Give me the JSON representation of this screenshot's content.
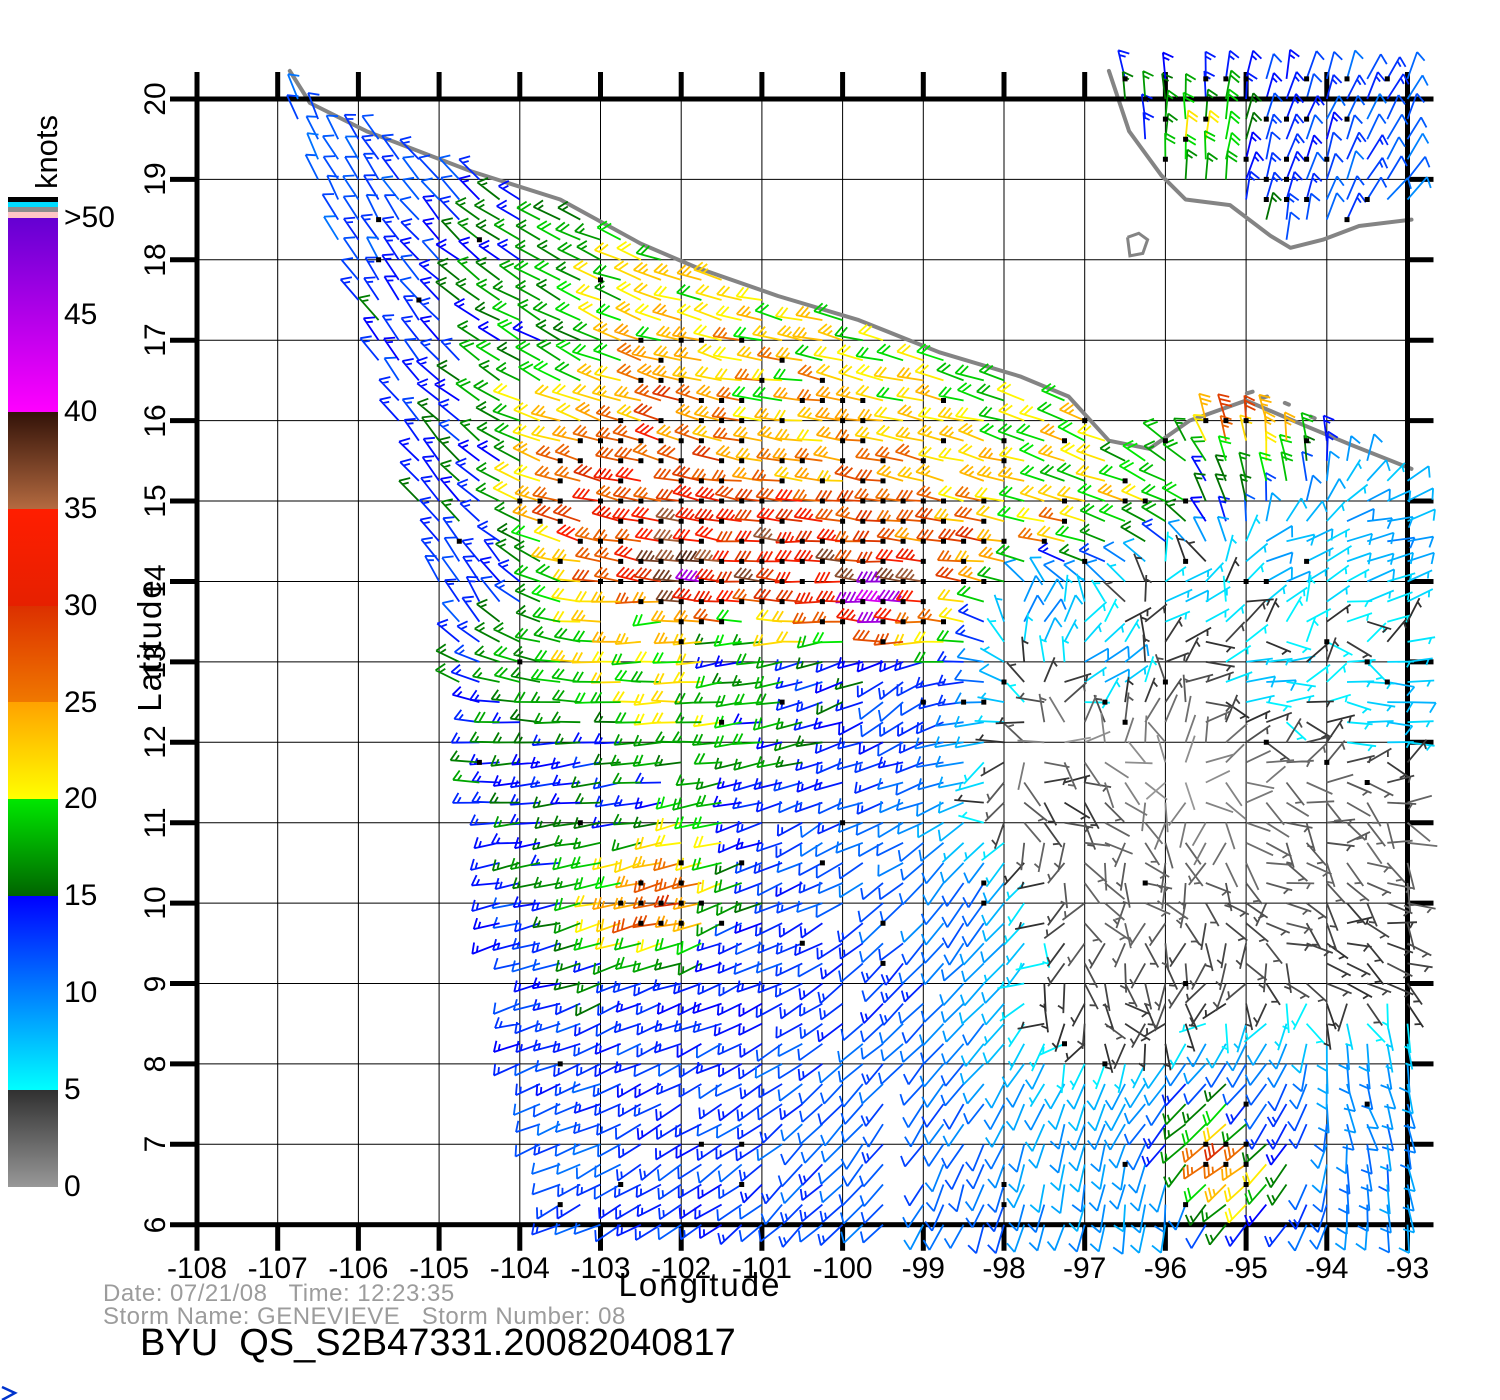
{
  "colorbar": {
    "title": "knots",
    "labels": [
      ">50",
      "45",
      "40",
      "35",
      "30",
      "25",
      "20",
      "15",
      "10",
      "5",
      "0"
    ],
    "top_stripes": [
      {
        "color": "#000000",
        "h": 5
      },
      {
        "color": "#00dcff",
        "h": 5
      },
      {
        "color": "#8c8c8c",
        "h": 5
      },
      {
        "color": "#ffc6c6",
        "h": 6
      }
    ],
    "gradient_segments": [
      {
        "top": "#6400d2",
        "bottom": "#ff00ff",
        "steps": 2
      },
      {
        "top": "#321208",
        "bottom": "#b46a40",
        "steps": 1
      },
      {
        "top": "#ff1e00",
        "bottom": "#e62000",
        "steps": 1
      },
      {
        "top": "#dc3000",
        "bottom": "#f07800",
        "steps": 1
      },
      {
        "top": "#ffa200",
        "bottom": "#ffff00",
        "steps": 1
      },
      {
        "top": "#00e800",
        "bottom": "#006400",
        "steps": 1
      },
      {
        "top": "#0000ff",
        "bottom": "#0080ff",
        "steps": 1
      },
      {
        "top": "#0080ff",
        "bottom": "#00ffff",
        "steps": 1
      },
      {
        "top": "#303030",
        "bottom": "#989898",
        "steps": 1
      }
    ]
  },
  "axes": {
    "xlabel": "Longitude",
    "ylabel": "Latitude",
    "x_tick_labels": [
      "-108",
      "-107",
      "-106",
      "-105",
      "-104",
      "-103",
      "-102",
      "-101",
      "-100",
      "-99",
      "-98",
      "-97",
      "-96",
      "-95",
      "-94",
      "-93"
    ],
    "y_tick_labels": [
      "20",
      "19",
      "18",
      "17",
      "16",
      "15",
      "14",
      "13",
      "12",
      "11",
      "10",
      "9",
      "8",
      "7",
      "6"
    ]
  },
  "footer": {
    "line1": "Date: 07/21/08   Time: 12:23:35",
    "line2": "Storm Name: GENEVIEVE   Storm Number: 08",
    "title": "BYU  QS_S2B47331.20082040817"
  },
  "chart_data": {
    "type": "wind-barb-map",
    "title": "BYU QS_S2B47331.20082040817",
    "date": "07/21/08",
    "time": "12:23:35",
    "storm_name": "GENEVIEVE",
    "storm_number": "08",
    "units": "knots",
    "lon_range": [
      -108,
      -93
    ],
    "lat_range": [
      6,
      20
    ],
    "grid_spacing_deg": 0.25,
    "legend_position": "left",
    "grid": true,
    "coast_color": "#848484",
    "corner_glyph_color": "#0033cc",
    "speed_color_stops": [
      [
        0,
        "#989898"
      ],
      [
        5,
        "#303030"
      ],
      [
        5.001,
        "#00ffff"
      ],
      [
        10,
        "#0080ff"
      ],
      [
        15,
        "#0000ff"
      ],
      [
        15.001,
        "#006400"
      ],
      [
        20,
        "#00e800"
      ],
      [
        20.001,
        "#ffff00"
      ],
      [
        25,
        "#ffa200"
      ],
      [
        25.001,
        "#f07800"
      ],
      [
        30,
        "#dc3000"
      ],
      [
        30.001,
        "#ff1e00"
      ],
      [
        35,
        "#e62000"
      ],
      [
        35.001,
        "#b46a40"
      ],
      [
        40,
        "#321208"
      ],
      [
        40.001,
        "#ff00ff"
      ],
      [
        50,
        "#6000c8"
      ],
      [
        99,
        "#6000c8"
      ]
    ],
    "swath_left_edge": [
      [
        6,
        -103.55
      ],
      [
        8,
        -104.0
      ],
      [
        10,
        -104.35
      ],
      [
        12,
        -104.6
      ],
      [
        14,
        -105.0
      ],
      [
        16,
        -105.5
      ],
      [
        18,
        -106.2
      ],
      [
        20.3,
        -106.97
      ]
    ],
    "coastlines": {
      "pacific": [
        [
          -106.85,
          20.35
        ],
        [
          -106.6,
          19.95
        ],
        [
          -105.9,
          19.6
        ],
        [
          -104.6,
          19.1
        ],
        [
          -103.5,
          18.75
        ],
        [
          -102.5,
          18.2
        ],
        [
          -101.8,
          17.9
        ],
        [
          -100.8,
          17.55
        ],
        [
          -99.8,
          17.25
        ],
        [
          -98.8,
          16.85
        ],
        [
          -97.8,
          16.55
        ],
        [
          -97.2,
          16.3
        ],
        [
          -96.7,
          15.75
        ],
        [
          -96.2,
          15.65
        ],
        [
          -95.7,
          16.0
        ],
        [
          -95.0,
          16.25
        ],
        [
          -94.3,
          15.95
        ],
        [
          -93.7,
          15.7
        ],
        [
          -92.95,
          15.4
        ]
      ],
      "campeche": [
        [
          -96.7,
          20.35
        ],
        [
          -96.55,
          19.9
        ],
        [
          -96.45,
          19.6
        ],
        [
          -96.05,
          19.05
        ],
        [
          -95.75,
          18.75
        ],
        [
          -95.2,
          18.68
        ],
        [
          -94.7,
          18.3
        ],
        [
          -94.45,
          18.15
        ],
        [
          -94.05,
          18.25
        ],
        [
          -93.6,
          18.42
        ],
        [
          -92.95,
          18.5
        ]
      ],
      "island": [
        [
          -96.47,
          18.28
        ],
        [
          -96.33,
          18.33
        ],
        [
          -96.22,
          18.25
        ],
        [
          -96.28,
          18.08
        ],
        [
          -96.44,
          18.05
        ],
        [
          -96.47,
          18.28
        ]
      ],
      "specks": [
        [
          -94.99,
          16.34,
          -94.92,
          16.36
        ],
        [
          -94.81,
          16.28,
          -94.74,
          16.3
        ],
        [
          -94.52,
          16.22,
          -94.47,
          16.2
        ],
        [
          -94.2,
          16.05,
          -94.15,
          16.03
        ]
      ]
    },
    "wind_control_points": [
      [
        -106.9,
        20.1,
        340,
        11
      ],
      [
        -106.6,
        19.8,
        335,
        11
      ],
      [
        -106.0,
        18.5,
        330,
        12
      ],
      [
        -105.5,
        17.0,
        325,
        14
      ],
      [
        -105.0,
        15.5,
        320,
        14
      ],
      [
        -104.6,
        14.0,
        330,
        13
      ],
      [
        -103.6,
        16.9,
        300,
        17
      ],
      [
        -102.8,
        16.2,
        290,
        24
      ],
      [
        -102.0,
        15.7,
        285,
        28
      ],
      [
        -102.9,
        15.0,
        285,
        30
      ],
      [
        -101.9,
        14.6,
        280,
        33
      ],
      [
        -101.9,
        14.05,
        280,
        40
      ],
      [
        -101.0,
        14.3,
        275,
        34
      ],
      [
        -100.2,
        14.2,
        272,
        34
      ],
      [
        -99.5,
        13.75,
        275,
        41
      ],
      [
        -99.0,
        14.0,
        272,
        32
      ],
      [
        -98.2,
        14.4,
        278,
        27
      ],
      [
        -97.4,
        14.7,
        283,
        24
      ],
      [
        -96.5,
        15.0,
        288,
        22
      ],
      [
        -95.8,
        15.2,
        292,
        20
      ],
      [
        -100.8,
        15.8,
        278,
        22
      ],
      [
        -99.5,
        15.3,
        280,
        25
      ],
      [
        -98.3,
        15.6,
        285,
        22
      ],
      [
        -97.3,
        15.9,
        290,
        22
      ],
      [
        -102.3,
        13.4,
        265,
        20
      ],
      [
        -101.3,
        13.0,
        260,
        16
      ],
      [
        -100.2,
        12.8,
        245,
        13
      ],
      [
        -99.3,
        12.6,
        225,
        12
      ],
      [
        -97.6,
        13.6,
        40,
        11
      ],
      [
        -96.8,
        13.0,
        60,
        9
      ],
      [
        -95.8,
        13.8,
        70,
        8
      ],
      [
        -94.6,
        14.3,
        78,
        9
      ],
      [
        -93.4,
        14.6,
        80,
        10
      ],
      [
        -94.8,
        12.8,
        85,
        7
      ],
      [
        -93.3,
        12.5,
        95,
        8
      ],
      [
        -97.3,
        11.3,
        120,
        5
      ],
      [
        -96.3,
        10.3,
        140,
        3
      ],
      [
        -95.2,
        9.6,
        160,
        4
      ],
      [
        -94.2,
        10.8,
        110,
        3
      ],
      [
        -96.6,
        8.8,
        150,
        4
      ],
      [
        -93.8,
        9.5,
        120,
        5
      ],
      [
        -104.0,
        9.5,
        255,
        13
      ],
      [
        -103.0,
        11.5,
        262,
        14
      ],
      [
        -102.1,
        10.0,
        255,
        29
      ],
      [
        -102.5,
        8.5,
        245,
        13
      ],
      [
        -101.3,
        9.5,
        245,
        13
      ],
      [
        -100.3,
        10.8,
        240,
        12
      ],
      [
        -99.5,
        9.0,
        225,
        13
      ],
      [
        -98.6,
        10.0,
        215,
        11
      ],
      [
        -103.3,
        6.8,
        245,
        12
      ],
      [
        -101.8,
        6.5,
        235,
        13
      ],
      [
        -100.4,
        6.4,
        225,
        12
      ],
      [
        -99.2,
        7.2,
        215,
        12
      ],
      [
        -98.3,
        6.4,
        200,
        11
      ],
      [
        -97.2,
        6.8,
        190,
        9
      ],
      [
        -96.2,
        6.3,
        185,
        9
      ],
      [
        -95.2,
        6.9,
        235,
        28
      ],
      [
        -94.6,
        7.3,
        210,
        12
      ],
      [
        -93.6,
        7.5,
        160,
        10
      ],
      [
        -93.2,
        6.5,
        170,
        10
      ],
      [
        -96.35,
        19.1,
        350,
        15
      ],
      [
        -95.6,
        19.25,
        5,
        21
      ],
      [
        -94.9,
        19.0,
        15,
        14
      ],
      [
        -94.2,
        19.4,
        20,
        13
      ],
      [
        -93.4,
        19.6,
        28,
        12
      ],
      [
        -93.1,
        18.8,
        40,
        11
      ],
      [
        -95.9,
        18.3,
        355,
        12
      ],
      [
        -95.15,
        16.05,
        350,
        30
      ],
      [
        -94.95,
        15.6,
        355,
        24
      ],
      [
        -95.4,
        15.2,
        345,
        16
      ]
    ],
    "speed_maxima": [
      [
        -101.9,
        14.05,
        42
      ],
      [
        -99.5,
        13.75,
        42
      ]
    ]
  }
}
